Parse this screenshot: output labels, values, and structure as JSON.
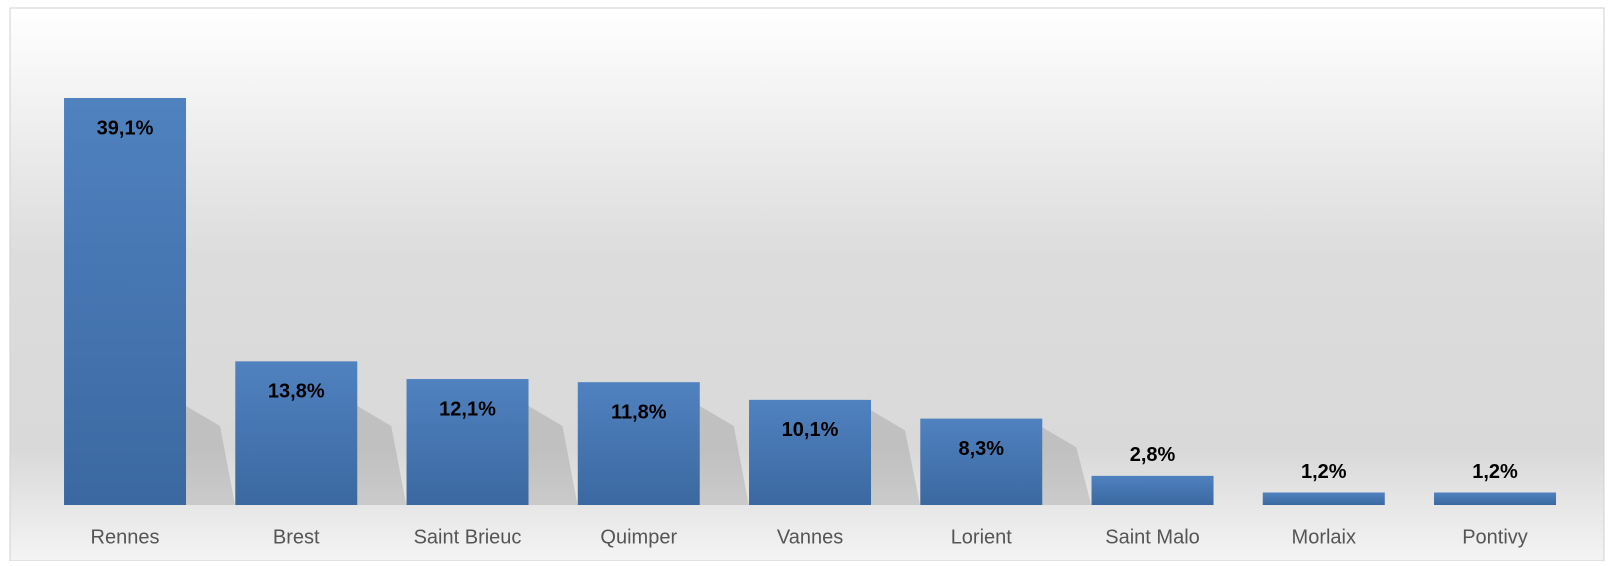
{
  "chart_data": {
    "type": "bar",
    "categories": [
      "Rennes",
      "Brest",
      "Saint Brieuc",
      "Quimper",
      "Vannes",
      "Lorient",
      "Saint Malo",
      "Morlaix",
      "Pontivy"
    ],
    "values": [
      39.1,
      13.8,
      12.1,
      11.8,
      10.1,
      8.3,
      2.8,
      1.2,
      1.2
    ],
    "value_labels": [
      "39,1%",
      "13,8%",
      "12,1%",
      "11,8%",
      "10,1%",
      "8,3%",
      "2,8%",
      "1,2%",
      "1,2%"
    ],
    "color": "#4a7bb7"
  }
}
